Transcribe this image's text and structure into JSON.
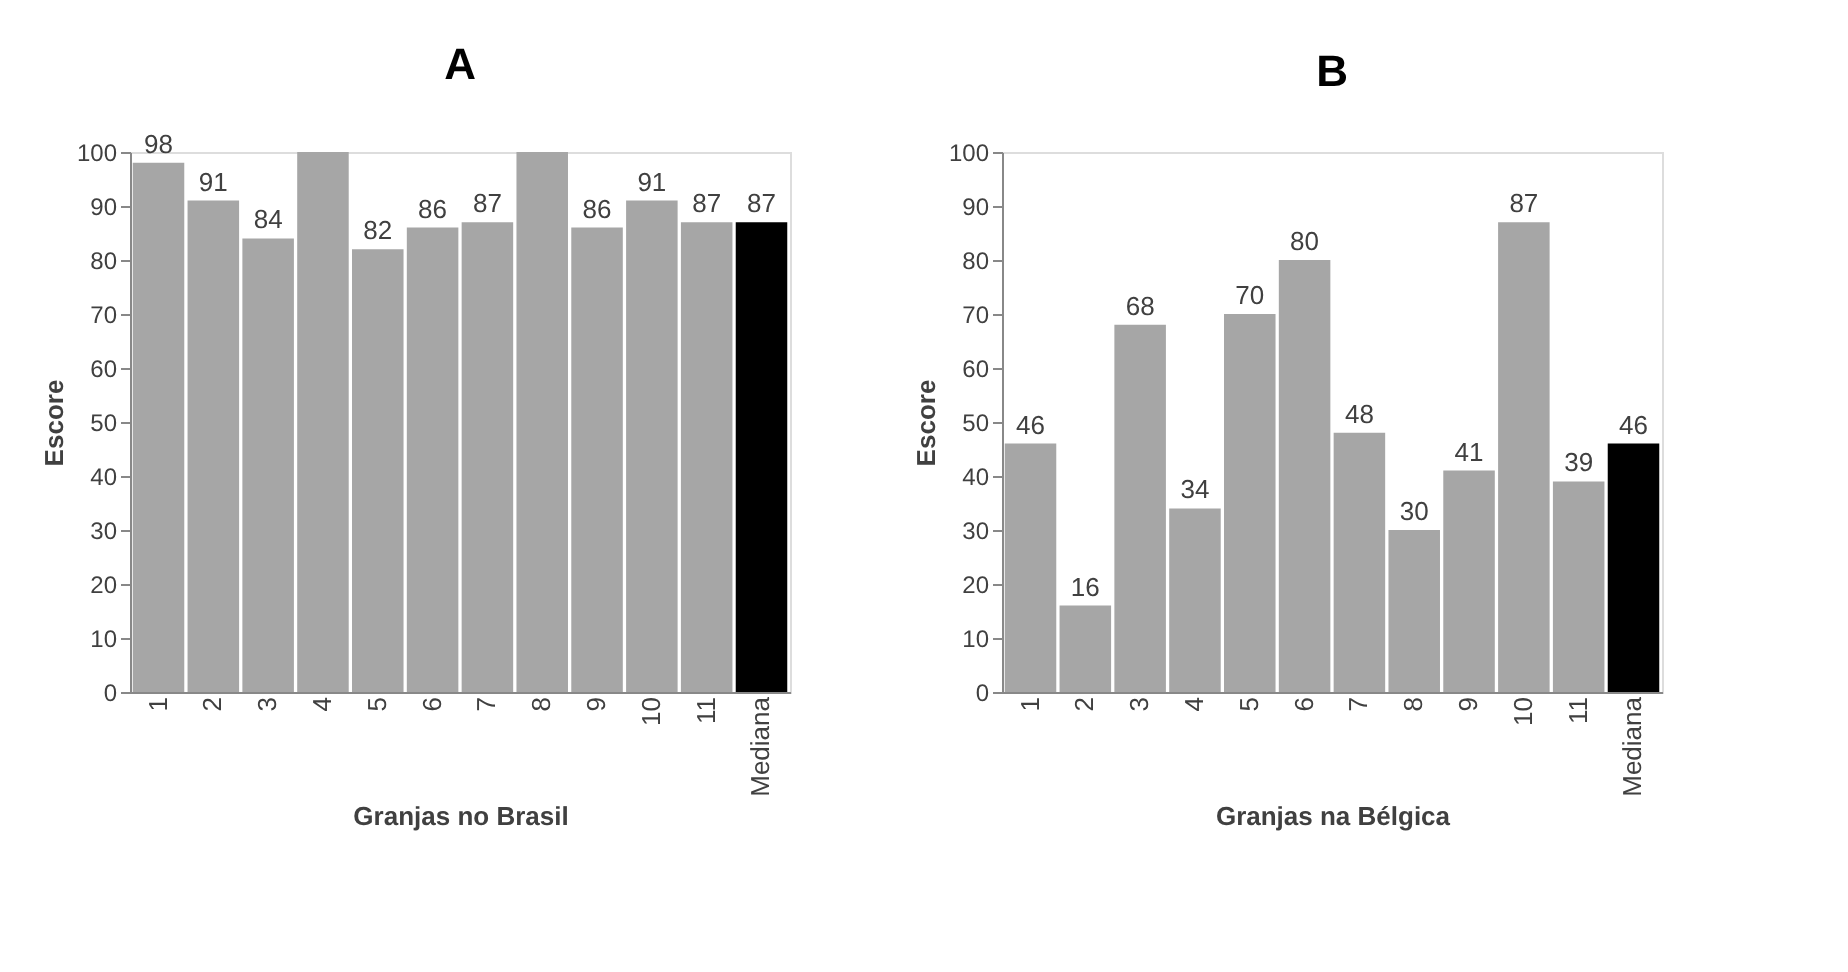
{
  "chart_data": [
    {
      "type": "bar",
      "title": "A",
      "xlabel": "Granjas no Brasil",
      "ylabel": "Escore",
      "categories": [
        "1",
        "2",
        "3",
        "4",
        "5",
        "6",
        "7",
        "8",
        "9",
        "10",
        "11",
        "Mediana"
      ],
      "values": [
        98,
        91,
        84,
        100,
        82,
        86,
        87,
        100,
        86,
        91,
        87,
        87
      ],
      "value_labels": [
        "98",
        "91",
        "84",
        null,
        "82",
        "86",
        "87",
        null,
        "86",
        "91",
        "87",
        "87"
      ],
      "colors": [
        "#a6a6a6",
        "#a6a6a6",
        "#a6a6a6",
        "#a6a6a6",
        "#a6a6a6",
        "#a6a6a6",
        "#a6a6a6",
        "#a6a6a6",
        "#a6a6a6",
        "#a6a6a6",
        "#a6a6a6",
        "#000000"
      ],
      "ylim": [
        0,
        100
      ],
      "yticks": [
        0,
        10,
        20,
        30,
        40,
        50,
        60,
        70,
        80,
        90,
        100
      ],
      "grid": false
    },
    {
      "type": "bar",
      "title": "B",
      "xlabel": "Granjas na Bélgica",
      "ylabel": "Escore",
      "categories": [
        "1",
        "2",
        "3",
        "4",
        "5",
        "6",
        "7",
        "8",
        "9",
        "10",
        "11",
        "Mediana"
      ],
      "values": [
        46,
        16,
        68,
        34,
        70,
        80,
        48,
        30,
        41,
        87,
        39,
        46
      ],
      "data_labels": true,
      "colors": [
        "#a6a6a6",
        "#a6a6a6",
        "#a6a6a6",
        "#a6a6a6",
        "#a6a6a6",
        "#a6a6a6",
        "#a6a6a6",
        "#a6a6a6",
        "#a6a6a6",
        "#a6a6a6",
        "#a6a6a6",
        "#000000"
      ],
      "ylim": [
        0,
        100
      ],
      "yticks": [
        0,
        10,
        20,
        30,
        40,
        50,
        60,
        70,
        80,
        90,
        100
      ],
      "grid": false
    }
  ]
}
